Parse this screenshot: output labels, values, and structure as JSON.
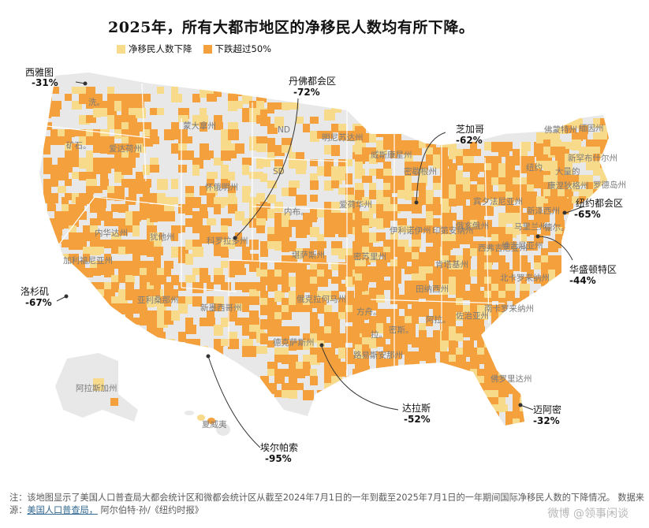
{
  "title": "2025年，所有大都市地区的净移民人数均有所下降。",
  "legend": [
    {
      "label": "净移民人数下降",
      "color": "#f8da8b"
    },
    {
      "label": "下跌超过50%",
      "color": "#f4a03c"
    }
  ],
  "colors": {
    "land": "#e8e8e8",
    "light": "#f8da8b",
    "dark": "#f4a03c",
    "border": "#ffffff",
    "callout_line": "#333333"
  },
  "callouts": [
    {
      "name": "西雅图",
      "value": "-31%"
    },
    {
      "name": "丹佛都会区",
      "value": "-72%"
    },
    {
      "name": "芝加哥",
      "value": "-62%"
    },
    {
      "name": "纽约都会区",
      "value": "-65%"
    },
    {
      "name": "华盛顿特区",
      "value": "-44%"
    },
    {
      "name": "洛杉矶",
      "value": "-67%"
    },
    {
      "name": "达拉斯",
      "value": "-52%"
    },
    {
      "name": "迈阿密",
      "value": "-32%"
    },
    {
      "name": "埃尔帕索",
      "value": "-95%"
    }
  ],
  "state_labels": [
    "洗。",
    "矿石。",
    "蒙大拿州",
    "爱达荷州",
    "ND",
    "明尼苏达州",
    "威斯康星州",
    "密歇根州",
    "SD",
    "怀俄明州",
    "爱荷华州",
    "内布。",
    "犹他州",
    "内华达州",
    "科罗拉多州",
    "伊利诺伊州",
    "印第安纳州",
    "俄亥俄州",
    "加利福尼亚州",
    "堪萨斯州",
    "密苏里州",
    "肯塔基州",
    "西弗吉尼亚州",
    "维吉尼亚州",
    "亚利桑那州",
    "新墨西哥州",
    "俄克拉何马州",
    "方舟。",
    "田纳西州",
    "北卡罗来纳州",
    "南卡罗来纳州",
    "密斯。",
    "阿拉。",
    "佐治亚州",
    "德克萨斯州",
    "拉。",
    "路易斯安那州",
    "佛罗里达州",
    "阿拉斯加州",
    "夏威夷",
    "佛蒙特州",
    "缅因州",
    "新罕布什尔州",
    "纽约",
    "大量的",
    "罗德岛州",
    "康涅狄格州",
    "宾夕法尼亚州",
    "新泽西州",
    "马里兰州。",
    "德尔。"
  ],
  "note_text": "注：该地图显示了美国人口普查局大都会统计区和微都会统计区从截至2024年7月1日的一年到截至2025年7月1日的一年期间国际净移民人数的下降情况。 数据来源：",
  "note_link": "美国人口普查局，",
  "note_credit": "阿尔伯特·孙/《纽约时报》",
  "watermark": "微博 @领事闲谈"
}
